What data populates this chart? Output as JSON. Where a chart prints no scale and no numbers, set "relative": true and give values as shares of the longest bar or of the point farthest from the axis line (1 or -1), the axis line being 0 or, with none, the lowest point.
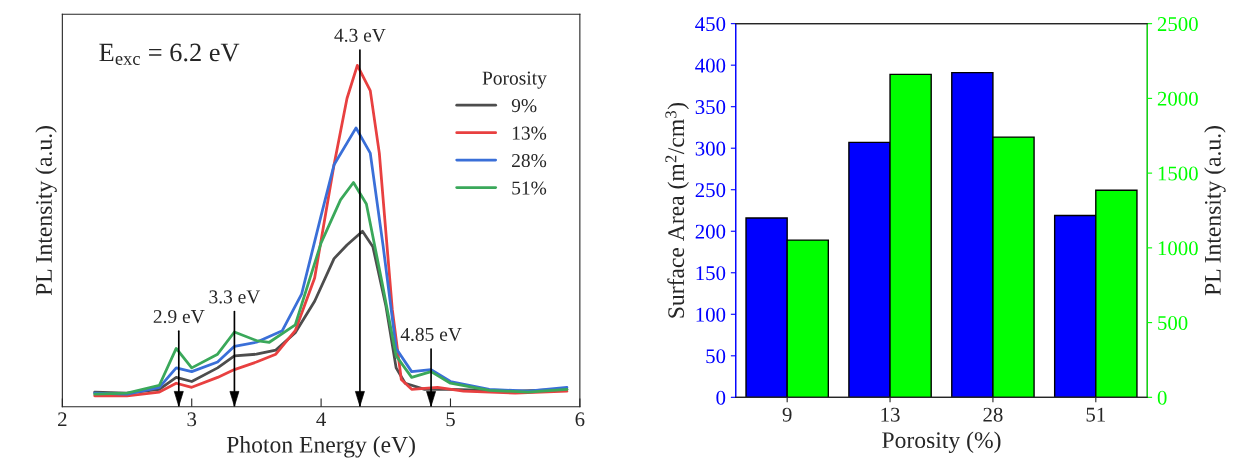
{
  "chart_data": [
    {
      "type": "line",
      "relative": true,
      "xlabel": "Photon Energy (eV)",
      "ylabel": "PL Intensity (a.u.)",
      "legend_title": "Porosity",
      "legend": "top right",
      "tick_labels": "x",
      "xlim": [
        2,
        6
      ],
      "xticks": [
        2,
        3,
        4,
        5,
        6
      ],
      "annotations": [
        "E$_{exc}$ = 6.2 eV"
      ],
      "ref_lines": [
        {
          "axis": "x",
          "value": 2.9,
          "label": "2.9 eV"
        },
        {
          "axis": "x",
          "value": 3.33,
          "label": "3.3 eV"
        },
        {
          "axis": "x",
          "value": 4.3,
          "label": "4.3 eV"
        },
        {
          "axis": "x",
          "value": 4.85,
          "label": "4.85 eV"
        }
      ],
      "series": [
        {
          "name": "9%",
          "color": "#4d4d4d",
          "x": [
            2.25,
            2.5,
            2.75,
            2.88,
            3.0,
            3.2,
            3.33,
            3.5,
            3.65,
            3.8,
            3.95,
            4.1,
            4.2,
            4.32,
            4.4,
            4.5,
            4.58,
            4.65,
            4.8,
            5.0,
            5.5,
            5.9
          ],
          "values": [
            0.043,
            0.04,
            0.051,
            0.086,
            0.074,
            0.114,
            0.149,
            0.154,
            0.166,
            0.217,
            0.309,
            0.434,
            0.474,
            0.514,
            0.469,
            0.297,
            0.114,
            0.069,
            0.051,
            0.051,
            0.046,
            0.051
          ]
        },
        {
          "name": "13%",
          "color": "#e84040",
          "x": [
            2.25,
            2.5,
            2.75,
            2.88,
            3.0,
            3.2,
            3.33,
            3.5,
            3.65,
            3.8,
            3.95,
            4.1,
            4.2,
            4.28,
            4.38,
            4.45,
            4.55,
            4.62,
            4.7,
            4.9,
            5.1,
            5.5,
            5.9
          ],
          "values": [
            0.032,
            0.032,
            0.043,
            0.069,
            0.057,
            0.086,
            0.109,
            0.131,
            0.154,
            0.223,
            0.377,
            0.709,
            0.903,
            1.0,
            0.926,
            0.743,
            0.286,
            0.08,
            0.051,
            0.057,
            0.046,
            0.04,
            0.046
          ]
        },
        {
          "name": "28%",
          "color": "#3a6fd8",
          "x": [
            2.25,
            2.5,
            2.75,
            2.88,
            3.0,
            3.2,
            3.33,
            3.5,
            3.7,
            3.85,
            4.0,
            4.1,
            4.27,
            4.38,
            4.48,
            4.58,
            4.7,
            4.85,
            5.0,
            5.3,
            5.6,
            5.9
          ],
          "values": [
            0.04,
            0.037,
            0.057,
            0.114,
            0.103,
            0.131,
            0.177,
            0.189,
            0.223,
            0.331,
            0.56,
            0.709,
            0.817,
            0.743,
            0.469,
            0.171,
            0.103,
            0.109,
            0.074,
            0.051,
            0.046,
            0.057
          ]
        },
        {
          "name": "51%",
          "color": "#3aa85a",
          "x": [
            2.25,
            2.5,
            2.75,
            2.88,
            3.0,
            3.2,
            3.33,
            3.5,
            3.6,
            3.8,
            4.0,
            4.15,
            4.25,
            4.35,
            4.47,
            4.58,
            4.7,
            4.85,
            5.0,
            5.3,
            5.6,
            5.9
          ],
          "values": [
            0.037,
            0.04,
            0.063,
            0.171,
            0.114,
            0.154,
            0.219,
            0.194,
            0.189,
            0.24,
            0.48,
            0.606,
            0.657,
            0.594,
            0.366,
            0.149,
            0.086,
            0.103,
            0.069,
            0.048,
            0.043,
            0.051
          ]
        }
      ]
    },
    {
      "type": "bar",
      "categories": [
        "9",
        "13",
        "28",
        "51"
      ],
      "xlabel": "Porosity (%)",
      "ylabel": "Surface Area (m$^{2}$/cm$^{3}$)",
      "y2label": "PL Intensity (a.u.)",
      "ylim": [
        0,
        450
      ],
      "yticks": [
        0,
        50,
        100,
        150,
        200,
        250,
        300,
        350,
        400,
        450
      ],
      "y2lim": [
        0,
        2500
      ],
      "y2ticks": [
        0,
        500,
        1000,
        1500,
        2000,
        2500
      ],
      "series": [
        {
          "color": "#0000ff",
          "values": [
            216,
            307,
            391,
            219
          ]
        },
        {
          "color": "#00ff00",
          "axis": "y2",
          "values": [
            1052,
            2161,
            1741,
            1385
          ]
        }
      ]
    }
  ]
}
